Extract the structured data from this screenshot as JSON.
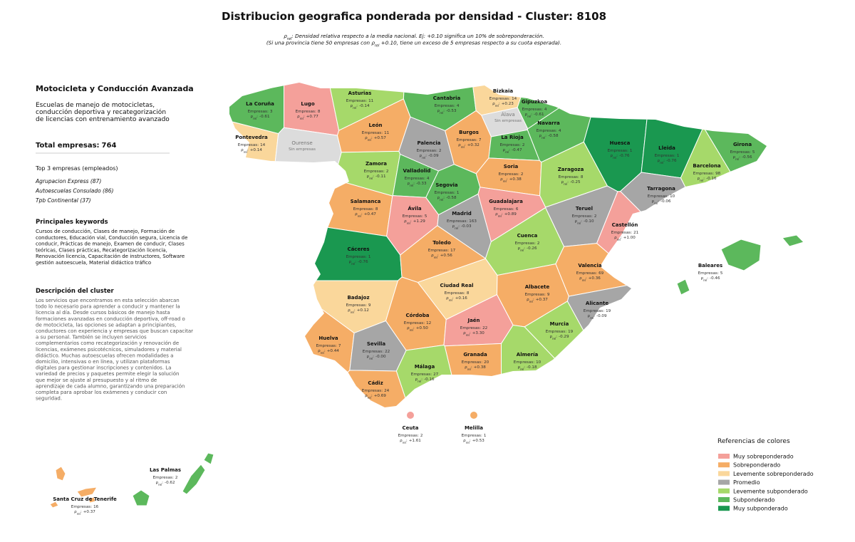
{
  "title": "Distribucion geografica ponderada por densidad - Cluster: 8108",
  "subtitle": [
    {
      "sym": "ρ",
      "sub": "rel",
      "post": ": Densidad relativa respecto a la media nacional. Ej: +0.10 significa un 10% de sobreponderación."
    },
    {
      "pre": "(Si una provincia tiene 50 empresas con ",
      "sym": "ρ",
      "sub": "rel",
      "post": " +0.10, tiene un exceso de 5 empresas respecto a su cuota esperada)."
    }
  ],
  "panel": {
    "title": "Motocicleta y Conducción Avanzada",
    "description": [
      "Escuelas de manejo de motocicletas,",
      "conducción deportiva y recategorización",
      "de licencias con entrenamiento avanzado"
    ],
    "total_label": "Total empresas:",
    "total": 764,
    "top_title": "Top 3 empresas (empleados)",
    "top": [
      "Agrupacion Express (87)",
      "Autoescuelas Consulado (86)",
      "Tpb Continental (37)"
    ],
    "keywords_title": "Principales keywords",
    "keywords": [
      "Cursos de conducción, Clases de manejo, Formación de",
      "conductores, Educación vial, Conducción segura, Licencia de",
      "conducir, Prácticas de manejo, Examen de conducir, Clases",
      "teóricas, Clases prácticas, Recategorización licencia,",
      "Renovación licencia, Capacitación de instructores, Software",
      "gestión autoescuela, Material didáctico tráfico"
    ],
    "cluster_title": "Descripción del cluster",
    "cluster_text": [
      "Los servicios que encontramos en esta selección abarcan",
      "todo lo necesario para aprender a conducir y mantener la",
      "licencia al día. Desde cursos básicos de manejo hasta",
      "formaciones avanzadas en conducción deportiva, off-road o",
      "de motocicleta, las opciones se adaptan a principiantes,",
      "conductores con experiencia y empresas que buscan capacitar",
      "a su personal. También se incluyen servicios",
      "complementarios como recategorización y renovación de",
      "licencias, exámenes psicotécnicos, simuladores y material",
      "didáctico. Muchas autoescuelas ofrecen modalidades a",
      "domicilio, intensivas o en línea, y utilizan plataformas",
      "digitales para gestionar inscripciones y contenidos. La",
      "variedad de precios y paquetes permite elegir la solución",
      "que mejor se ajuste al presupuesto y al ritmo de",
      "aprendizaje de cada alumno, garantizando una preparación",
      "completa para aprobar los exámenes y conducir con",
      "seguridad."
    ]
  },
  "labels": {
    "empresas": "Empresas:",
    "rho": "ρ",
    "rel": "rel",
    "sep": ":"
  },
  "no_data_color": "#dcdcdc",
  "legend": {
    "title": "Referencias de colores",
    "items": [
      {
        "name": "Muy sobreponderado",
        "color": "#f4a09a"
      },
      {
        "name": "Sobreponderado",
        "color": "#f5ad66"
      },
      {
        "name": "Levemente sobreponderado",
        "color": "#fad79b"
      },
      {
        "name": "Promedio",
        "color": "#a6a6a6"
      },
      {
        "name": "Levemente subponderado",
        "color": "#a6d96a"
      },
      {
        "name": "Subponderado",
        "color": "#5cb85c"
      },
      {
        "name": "Muy subponderado",
        "color": "#1a9850"
      }
    ]
  },
  "provinces": [
    {
      "name": "La Coruña",
      "empresas": 3,
      "rho": "-0.61",
      "cat": 5
    },
    {
      "name": "Lugo",
      "empresas": 8,
      "rho": "+0.77",
      "cat": 0
    },
    {
      "name": "Asturias",
      "empresas": 11,
      "rho": "-0.14",
      "cat": 4
    },
    {
      "name": "Cantabria",
      "empresas": 4,
      "rho": "-0.53",
      "cat": 5
    },
    {
      "name": "Bizkaia",
      "empresas": 14,
      "rho": "+0.23",
      "cat": 2
    },
    {
      "name": "Gipuzkoa",
      "empresas": 4,
      "rho": "-0.61",
      "cat": 5
    },
    {
      "name": "Álava",
      "note": "Sin empresas"
    },
    {
      "name": "Navarra",
      "empresas": 4,
      "rho": "-0.58",
      "cat": 5
    },
    {
      "name": "Pontevedra",
      "empresas": 14,
      "rho": "+0.14",
      "cat": 2
    },
    {
      "name": "Ourense",
      "note": "Sin empresas"
    },
    {
      "name": "León",
      "empresas": 11,
      "rho": "+0.57",
      "cat": 1
    },
    {
      "name": "Palencia",
      "empresas": 2,
      "rho": "-0.09",
      "cat": 3
    },
    {
      "name": "Burgos",
      "empresas": 7,
      "rho": "+0.32",
      "cat": 1
    },
    {
      "name": "La Rioja",
      "empresas": 2,
      "rho": "-0.47",
      "cat": 5
    },
    {
      "name": "Huesca",
      "empresas": 1,
      "rho": "-0.76",
      "cat": 6
    },
    {
      "name": "Lleida",
      "empresas": 1,
      "rho": "-0.76",
      "cat": 6
    },
    {
      "name": "Girona",
      "empresas": 5,
      "rho": "-0.56",
      "cat": 5
    },
    {
      "name": "Barcelona",
      "empresas": 98,
      "rho": "-0.16",
      "cat": 4
    },
    {
      "name": "Zamora",
      "empresas": 2,
      "rho": "-0.11",
      "cat": 4
    },
    {
      "name": "Valladolid",
      "empresas": 4,
      "rho": "-0.33",
      "cat": 5
    },
    {
      "name": "Soria",
      "empresas": 2,
      "rho": "+0.38",
      "cat": 1
    },
    {
      "name": "Zaragoza",
      "empresas": 8,
      "rho": "-0.25",
      "cat": 4
    },
    {
      "name": "Segovia",
      "empresas": 1,
      "rho": "-0.58",
      "cat": 5
    },
    {
      "name": "Tarragona",
      "empresas": 10,
      "rho": "-0.06",
      "cat": 3
    },
    {
      "name": "Salamanca",
      "empresas": 8,
      "rho": "+0.47",
      "cat": 1
    },
    {
      "name": "Ávila",
      "empresas": 5,
      "rho": "+1.29",
      "cat": 0
    },
    {
      "name": "Madrid",
      "empresas": 163,
      "rho": "-0.03",
      "cat": 3
    },
    {
      "name": "Guadalajara",
      "empresas": 6,
      "rho": "+0.89",
      "cat": 0
    },
    {
      "name": "Teruel",
      "empresas": 2,
      "rho": "-0.10",
      "cat": 3
    },
    {
      "name": "Castellón",
      "empresas": 21,
      "rho": "+1.00",
      "cat": 0
    },
    {
      "name": "Cáceres",
      "empresas": 1,
      "rho": "-0.76",
      "cat": 6
    },
    {
      "name": "Toledo",
      "empresas": 17,
      "rho": "+0.56",
      "cat": 1
    },
    {
      "name": "Cuenca",
      "empresas": 2,
      "rho": "-0.26",
      "cat": 4
    },
    {
      "name": "Valencia",
      "empresas": 69,
      "rho": "+0.36",
      "cat": 1
    },
    {
      "name": "Ciudad Real",
      "empresas": 8,
      "rho": "+0.16",
      "cat": 2
    },
    {
      "name": "Albacete",
      "empresas": 9,
      "rho": "+0.37",
      "cat": 1
    },
    {
      "name": "Badajoz",
      "empresas": 9,
      "rho": "+0.12",
      "cat": 2
    },
    {
      "name": "Alicante",
      "empresas": 19,
      "rho": "-0.09",
      "cat": 3
    },
    {
      "name": "Córdoba",
      "empresas": 12,
      "rho": "+0.50",
      "cat": 1
    },
    {
      "name": "Jaén",
      "empresas": 22,
      "rho": "+3.30",
      "cat": 0
    },
    {
      "name": "Murcia",
      "empresas": 19,
      "rho": "-0.29",
      "cat": 4
    },
    {
      "name": "Huelva",
      "empresas": 7,
      "rho": "+0.44",
      "cat": 1
    },
    {
      "name": "Sevilla",
      "empresas": 22,
      "rho": "-0.00",
      "cat": 3
    },
    {
      "name": "Granada",
      "empresas": 20,
      "rho": "+0.38",
      "cat": 1
    },
    {
      "name": "Almería",
      "empresas": 10,
      "rho": "-0.18",
      "cat": 4
    },
    {
      "name": "Málaga",
      "empresas": 27,
      "rho": "-0.16",
      "cat": 4
    },
    {
      "name": "Cádiz",
      "empresas": 24,
      "rho": "+0.69",
      "cat": 1
    },
    {
      "name": "Baleares",
      "empresas": 5,
      "rho": "-0.46",
      "cat": 5
    },
    {
      "name": "Ceuta",
      "empresas": 2,
      "rho": "+1.61",
      "cat": 0
    },
    {
      "name": "Melilla",
      "empresas": 1,
      "rho": "+0.53",
      "cat": 1
    },
    {
      "name": "Las Palmas",
      "empresas": 2,
      "rho": "-0.62",
      "cat": 5
    },
    {
      "name": "Santa Cruz de Tenerife",
      "empresas": 16,
      "rho": "+0.37",
      "cat": 1
    }
  ]
}
